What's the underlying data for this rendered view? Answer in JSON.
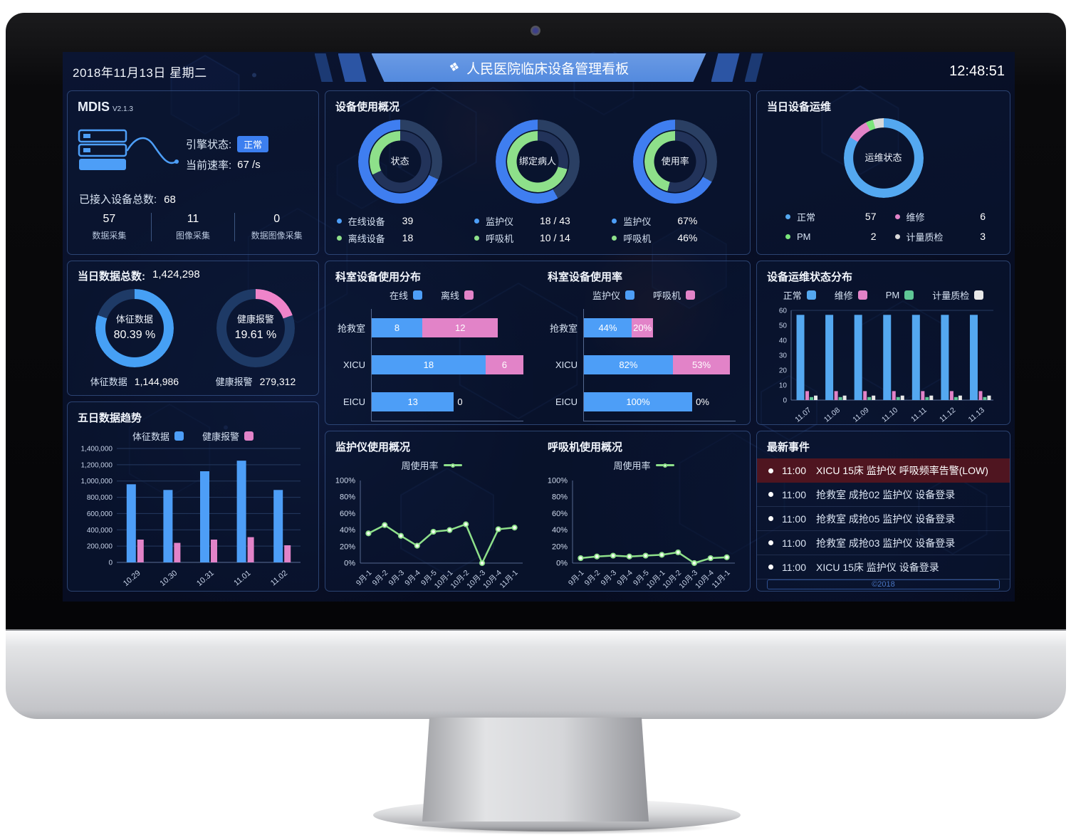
{
  "colors": {
    "blue": "#4d9ef7",
    "ring_blue": "#3f7ef0",
    "sky": "#54a8f0",
    "green": "#8ee08a",
    "bright_green": "#7be57b",
    "teal": "#5fc796",
    "pink": "#e283c8",
    "white_seg": "#d9d9d9",
    "ring_rest": "#2a3f63",
    "ring_rest_dark": "#22335a",
    "today_rest": "#1e3a66",
    "badge_blue": "#3c7ff0",
    "alarm_bg": "#4f1520"
  },
  "header": {
    "date": "2018年11月13日 星期二",
    "title": "人民医院临床设备管理看板",
    "time": "12:48:51"
  },
  "mdis": {
    "name": "MDIS",
    "version": "V2.1.3",
    "engine_label": "引擎状态:",
    "engine_status": "正常",
    "rate_label": "当前速率:",
    "rate_value": "67 /s",
    "total_label": "已接入设备总数:",
    "total_value": "68",
    "stats": [
      {
        "value": "57",
        "label": "数据采集"
      },
      {
        "value": "11",
        "label": "图像采集"
      },
      {
        "value": "0",
        "label": "数据图像采集"
      }
    ]
  },
  "device_usage": {
    "title": "设备使用概况",
    "donuts": [
      {
        "center": "状态",
        "ring_outer_pct": 68,
        "ring_inner_pct": 32,
        "legend": [
          {
            "color": "#4d9ef7",
            "label": "在线设备",
            "value": "39"
          },
          {
            "color": "#8ee08a",
            "label": "离线设备",
            "value": "18"
          }
        ]
      },
      {
        "center": "绑定病人",
        "ring_outer_pct": 58,
        "ring_inner_pct": 71,
        "legend": [
          {
            "color": "#4d9ef7",
            "label": "监护仪",
            "value": "18 / 43"
          },
          {
            "color": "#8ee08a",
            "label": "呼吸机",
            "value": "10 / 14"
          }
        ]
      },
      {
        "center": "使用率",
        "ring_outer_pct": 67,
        "ring_inner_pct": 46,
        "legend": [
          {
            "color": "#4d9ef7",
            "label": "监护仪",
            "value": "67%"
          },
          {
            "color": "#8ee08a",
            "label": "呼吸机",
            "value": "46%"
          }
        ]
      }
    ]
  },
  "maintenance": {
    "title": "当日设备运维",
    "center": "运维状态",
    "segments": [
      {
        "label": "正常",
        "value": 57,
        "color": "#54a8f0"
      },
      {
        "label": "维修",
        "value": 6,
        "color": "#e283c8"
      },
      {
        "label": "PM",
        "value": 2,
        "color": "#7be57b"
      },
      {
        "label": "计量质检",
        "value": 3,
        "color": "#d9d9d9"
      }
    ]
  },
  "data_today": {
    "label": "当日数据总数:",
    "value": "1,424,298",
    "items": [
      {
        "name": "体征数据",
        "pct_text": "80.39 %",
        "pct": 80.39,
        "color": "#46a0f5",
        "count": "1,144,986"
      },
      {
        "name": "健康报警",
        "pct_text": "19.61 %",
        "pct": 19.61,
        "color": "#ef84ca",
        "count": "279,312"
      }
    ]
  },
  "chart_data": {
    "trend": {
      "type": "bar",
      "title": "五日数据趋势",
      "categories": [
        "10.29",
        "10.30",
        "10.31",
        "11.01",
        "11.02"
      ],
      "series": [
        {
          "name": "体征数据",
          "color": "#4d9ef7",
          "values": [
            960000,
            890000,
            1120000,
            1250000,
            890000
          ]
        },
        {
          "name": "健康报警",
          "color": "#e283c8",
          "values": [
            280000,
            240000,
            280000,
            310000,
            210000
          ]
        }
      ],
      "ylim": [
        0,
        1400000
      ],
      "ytick": 200000,
      "grid": true,
      "legend_position": "top"
    },
    "dept_dist": {
      "type": "bar-h-stacked",
      "title": "科室设备使用分布",
      "categories": [
        "抢救室",
        "XICU",
        "EICU"
      ],
      "series": [
        {
          "name": "在线",
          "color": "#4d9ef7",
          "values": [
            8,
            18,
            13
          ]
        },
        {
          "name": "离线",
          "color": "#e283c8",
          "values": [
            12,
            6,
            0
          ]
        }
      ],
      "max": 24,
      "suffix": ""
    },
    "dept_rate": {
      "type": "bar-h-stacked",
      "title": "科室设备使用率",
      "categories": [
        "抢救室",
        "XICU",
        "EICU"
      ],
      "series": [
        {
          "name": "监护仪",
          "color": "#4d9ef7",
          "values": [
            44,
            82,
            100
          ]
        },
        {
          "name": "呼吸机",
          "color": "#e283c8",
          "values": [
            20,
            53,
            0
          ]
        }
      ],
      "max": 140,
      "suffix": "%"
    },
    "maint_dist": {
      "type": "bar-grouped",
      "title": "设备运维状态分布",
      "categories": [
        "11.07",
        "11.08",
        "11.09",
        "11.10",
        "11.11",
        "11.12",
        "11.13"
      ],
      "series": [
        {
          "name": "正常",
          "color": "#54a8f0",
          "values": [
            57,
            57,
            57,
            57,
            57,
            57,
            57
          ]
        },
        {
          "name": "维修",
          "color": "#e283c8",
          "values": [
            6,
            6,
            6,
            6,
            6,
            6,
            6
          ]
        },
        {
          "name": "PM",
          "color": "#5fc796",
          "values": [
            2,
            2,
            2,
            2,
            2,
            2,
            2
          ]
        },
        {
          "name": "计量质检",
          "color": "#e8e8e8",
          "values": [
            3,
            3,
            3,
            3,
            3,
            3,
            3
          ]
        }
      ],
      "ylim": [
        0,
        60
      ],
      "ytick": 10,
      "legend_position": "top"
    },
    "monitor_usage": {
      "type": "line",
      "title": "监护仪使用概况",
      "legend": "周使用率",
      "color": "#8ee08a",
      "x": [
        "9月-1",
        "9月-2",
        "9月-3",
        "9月-4",
        "9月-5",
        "10月-1",
        "10月-2",
        "10月-3",
        "10月-4",
        "11月-1"
      ],
      "values": [
        36,
        46,
        33,
        21,
        38,
        40,
        47,
        0,
        41,
        43
      ],
      "ylim": [
        0,
        100
      ],
      "ytick": 20
    },
    "vent_usage": {
      "type": "line",
      "title": "呼吸机使用概况",
      "legend": "周使用率",
      "color": "#8ee08a",
      "x": [
        "9月-1",
        "9月-2",
        "9月-3",
        "9月-4",
        "9月-5",
        "10月-1",
        "10月-2",
        "10月-3",
        "10月-4",
        "11月-1"
      ],
      "values": [
        6,
        8,
        9,
        8,
        9,
        10,
        13,
        0,
        6,
        7
      ],
      "ylim": [
        0,
        100
      ],
      "ytick": 20
    }
  },
  "events": {
    "title": "最新事件",
    "items": [
      {
        "time": "11:00",
        "text": "XICU 15床 监护仪 呼吸频率告警(LOW)",
        "alarm": true
      },
      {
        "time": "11:00",
        "text": "抢救室 成抢02 监护仪 设备登录",
        "alarm": false
      },
      {
        "time": "11:00",
        "text": "抢救室 成抢05 监护仪 设备登录",
        "alarm": false
      },
      {
        "time": "11:00",
        "text": "抢救室 成抢03 监护仪 设备登录",
        "alarm": false
      },
      {
        "time": "11:00",
        "text": "XICU 15床 监护仪 设备登录",
        "alarm": false
      }
    ],
    "footer": "©2018"
  }
}
